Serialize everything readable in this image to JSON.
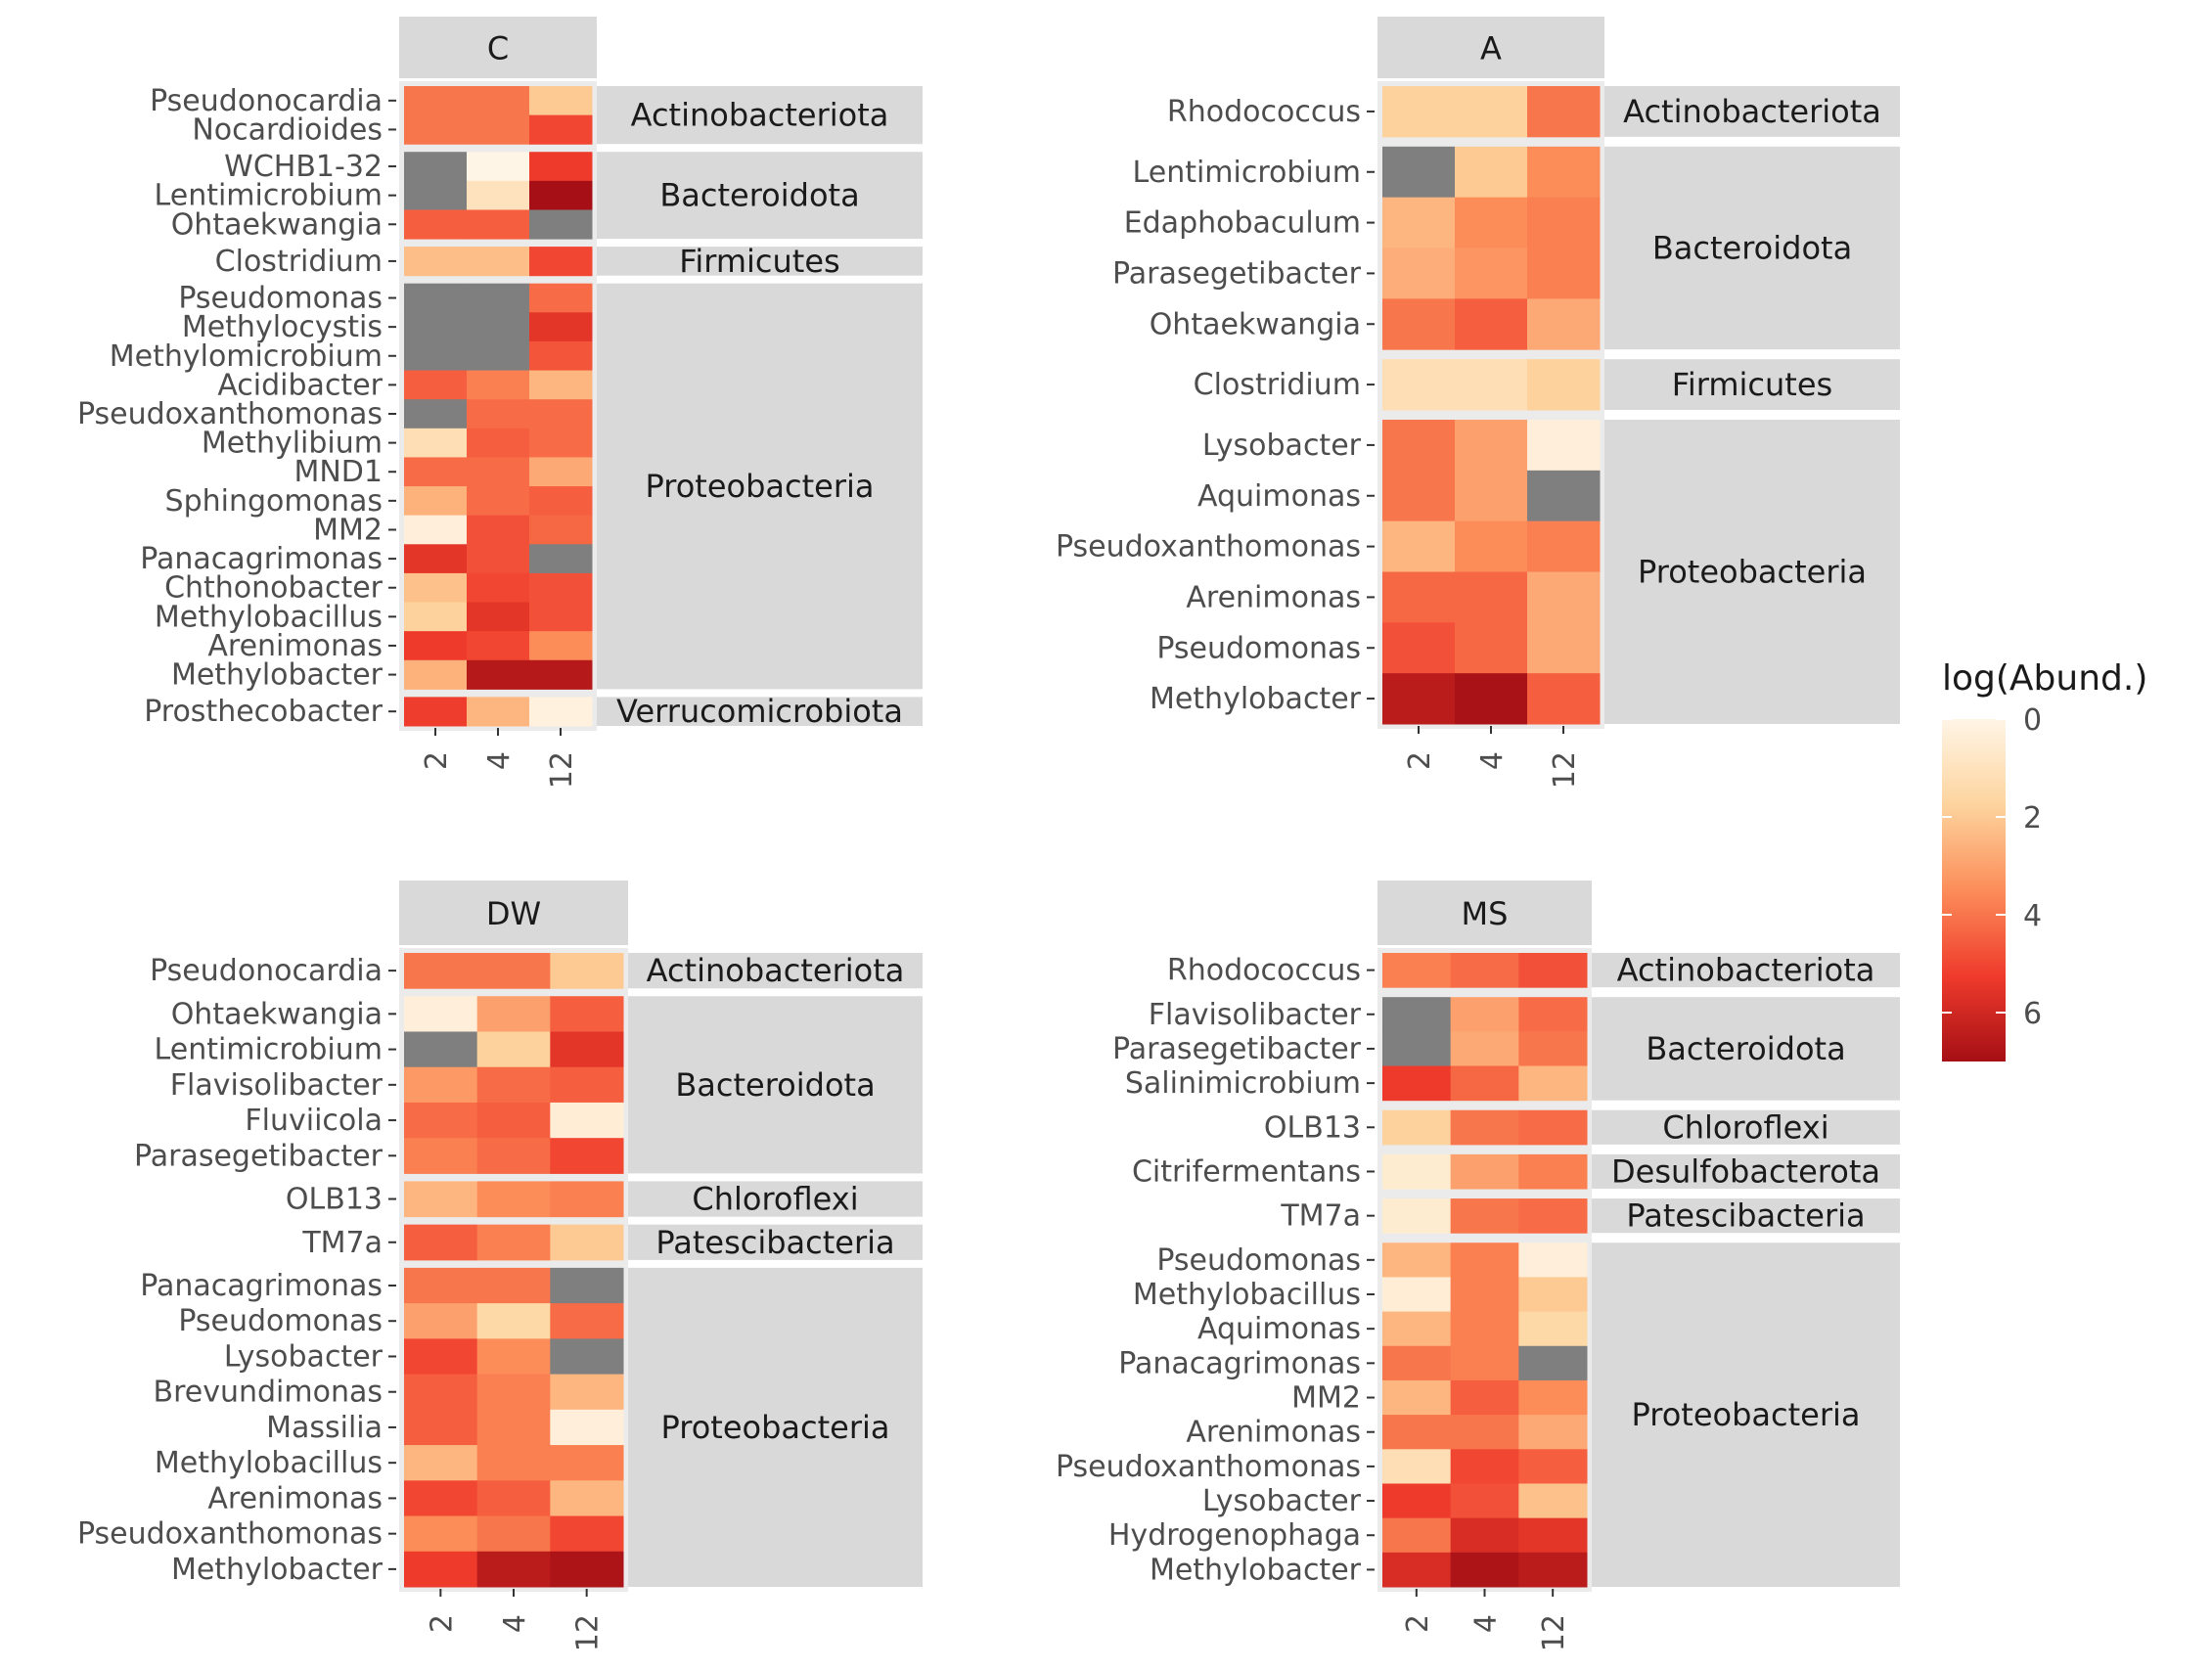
{
  "chart_data": {
    "type": "heatmap",
    "legend": {
      "title": "log(Abund.)",
      "ticks": [
        0,
        2,
        4,
        6
      ],
      "range": [
        0,
        7
      ],
      "low_color": "#fff5e6",
      "mid_colors": [
        "#fdd49e",
        "#fc8d59",
        "#ef3b2c"
      ],
      "high_color": "#a50f15",
      "na_color": "#7f7f7f",
      "placement": "right"
    },
    "x_categories": [
      "2",
      "4",
      "12"
    ],
    "panels": [
      {
        "title": "C",
        "groups": [
          {
            "phylum": "Actinobacteriota",
            "rows": [
              {
                "genus": "Pseudonocardia",
                "values": [
                  4,
                  4,
                  2
                ]
              },
              {
                "genus": "Nocardioides",
                "values": [
                  4,
                  4,
                  5
                ]
              }
            ]
          },
          {
            "phylum": "Bacteroidota",
            "rows": [
              {
                "genus": "WCHB1-32",
                "values": [
                  null,
                  0,
                  5.3
                ]
              },
              {
                "genus": "Lentimicrobium",
                "values": [
                  null,
                  1,
                  7
                ]
              },
              {
                "genus": "Ohtaekwangia",
                "values": [
                  4.5,
                  4.5,
                  null
                ]
              }
            ]
          },
          {
            "phylum": "Firmicutes",
            "rows": [
              {
                "genus": "Clostridium",
                "values": [
                  2.3,
                  2.3,
                  5
                ]
              }
            ]
          },
          {
            "phylum": "Proteobacteria",
            "rows": [
              {
                "genus": "Pseudomonas",
                "values": [
                  null,
                  null,
                  4.2
                ]
              },
              {
                "genus": "Methylocystis",
                "values": [
                  null,
                  null,
                  5.5
                ]
              },
              {
                "genus": "Methylomicrobium",
                "values": [
                  null,
                  null,
                  4.7
                ]
              },
              {
                "genus": "Acidibacter",
                "values": [
                  4.5,
                  3.8,
                  2.5
                ]
              },
              {
                "genus": "Pseudoxanthomonas",
                "values": [
                  null,
                  4.2,
                  4.2
                ]
              },
              {
                "genus": "Methylibium",
                "values": [
                  1.2,
                  4.5,
                  4.2
                ]
              },
              {
                "genus": "MND1",
                "values": [
                  4.2,
                  4.2,
                  2.8
                ]
              },
              {
                "genus": "Sphingomonas",
                "values": [
                  2.6,
                  4.2,
                  4.5
                ]
              },
              {
                "genus": "MM2",
                "values": [
                  0.3,
                  4.8,
                  4.3
                ]
              },
              {
                "genus": "Panacagrimonas",
                "values": [
                  5.5,
                  4.8,
                  null
                ]
              },
              {
                "genus": "Chthonobacter",
                "values": [
                  2.2,
                  5,
                  4.8
                ]
              },
              {
                "genus": "Methylobacillus",
                "values": [
                  1.8,
                  5.5,
                  4.8
                ]
              },
              {
                "genus": "Arenimonas",
                "values": [
                  5.3,
                  5,
                  3.5
                ]
              },
              {
                "genus": "Methylobacter",
                "values": [
                  2.6,
                  6.6,
                  6.6
                ]
              }
            ]
          },
          {
            "phylum": "Verrucomicrobiota",
            "rows": [
              {
                "genus": "Prosthecobacter",
                "values": [
                  5.2,
                  2.5,
                  0.2
                ]
              }
            ]
          }
        ]
      },
      {
        "title": "A",
        "groups": [
          {
            "phylum": "Actinobacteriota",
            "rows": [
              {
                "genus": "Rhodococcus",
                "values": [
                  1.8,
                  1.8,
                  4
                ]
              }
            ]
          },
          {
            "phylum": "Bacteroidota",
            "rows": [
              {
                "genus": "Lentimicrobium",
                "values": [
                  null,
                  2,
                  3.5
                ]
              },
              {
                "genus": "Edaphobaculum",
                "values": [
                  2.5,
                  3.5,
                  3.8
                ]
              },
              {
                "genus": "Parasegetibacter",
                "values": [
                  2.7,
                  3.3,
                  3.8
                ]
              },
              {
                "genus": "Ohtaekwangia",
                "values": [
                  4,
                  4.5,
                  2.8
                ]
              }
            ]
          },
          {
            "phylum": "Firmicutes",
            "rows": [
              {
                "genus": "Clostridium",
                "values": [
                  1.2,
                  1.2,
                  1.8
                ]
              }
            ]
          },
          {
            "phylum": "Proteobacteria",
            "rows": [
              {
                "genus": "Lysobacter",
                "values": [
                  4,
                  3,
                  0.3
                ]
              },
              {
                "genus": "Aquimonas",
                "values": [
                  4,
                  3,
                  null
                ]
              },
              {
                "genus": "Pseudoxanthomonas",
                "values": [
                  2.5,
                  3.5,
                  3.8
                ]
              },
              {
                "genus": "Arenimonas",
                "values": [
                  4.3,
                  4.3,
                  2.8
                ]
              },
              {
                "genus": "Pseudomonas",
                "values": [
                  4.8,
                  4.3,
                  2.8
                ]
              },
              {
                "genus": "Methylobacter",
                "values": [
                  6.5,
                  6.9,
                  4.5
                ]
              }
            ]
          }
        ]
      },
      {
        "title": "DW",
        "groups": [
          {
            "phylum": "Actinobacteriota",
            "rows": [
              {
                "genus": "Pseudonocardia",
                "values": [
                  4,
                  4,
                  2
                ]
              }
            ]
          },
          {
            "phylum": "Bacteroidota",
            "rows": [
              {
                "genus": "Ohtaekwangia",
                "values": [
                  0.3,
                  3,
                  4.5
                ]
              },
              {
                "genus": "Lentimicrobium",
                "values": [
                  null,
                  1.8,
                  5.5
                ]
              },
              {
                "genus": "Flavisolibacter",
                "values": [
                  3.2,
                  4.2,
                  4.5
                ]
              },
              {
                "genus": "Fluviicola",
                "values": [
                  4.2,
                  4.5,
                  0.4
                ]
              },
              {
                "genus": "Parasegetibacter",
                "values": [
                  3.8,
                  4.2,
                  5
                ]
              }
            ]
          },
          {
            "phylum": "Chloroflexi",
            "rows": [
              {
                "genus": "OLB13",
                "values": [
                  2.5,
                  3.5,
                  3.8
                ]
              }
            ]
          },
          {
            "phylum": "Patescibacteria",
            "rows": [
              {
                "genus": "TM7a",
                "values": [
                  4.5,
                  3.8,
                  2
                ]
              }
            ]
          },
          {
            "phylum": "Proteobacteria",
            "rows": [
              {
                "genus": "Panacagrimonas",
                "values": [
                  4,
                  4,
                  null
                ]
              },
              {
                "genus": "Pseudomonas",
                "values": [
                  3,
                  1.5,
                  4.2
                ]
              },
              {
                "genus": "Lysobacter",
                "values": [
                  5,
                  3.5,
                  null
                ]
              },
              {
                "genus": "Brevundimonas",
                "values": [
                  4.5,
                  3.8,
                  2.5
                ]
              },
              {
                "genus": "Massilia",
                "values": [
                  4.5,
                  3.8,
                  0.3
                ]
              },
              {
                "genus": "Methylobacillus",
                "values": [
                  2.5,
                  3.8,
                  3.8
                ]
              },
              {
                "genus": "Arenimonas",
                "values": [
                  5,
                  4.5,
                  2.5
                ]
              },
              {
                "genus": "Pseudoxanthomonas",
                "values": [
                  3.5,
                  4,
                  5
                ]
              },
              {
                "genus": "Methylobacter",
                "values": [
                  5.3,
                  6.5,
                  6.8
                ]
              }
            ]
          }
        ]
      },
      {
        "title": "MS",
        "groups": [
          {
            "phylum": "Actinobacteriota",
            "rows": [
              {
                "genus": "Rhodococcus",
                "values": [
                  3.8,
                  4.2,
                  4.8
                ]
              }
            ]
          },
          {
            "phylum": "Bacteroidota",
            "rows": [
              {
                "genus": "Flavisolibacter",
                "values": [
                  null,
                  3,
                  4.2
                ]
              },
              {
                "genus": "Parasegetibacter",
                "values": [
                  null,
                  2.8,
                  4
                ]
              },
              {
                "genus": "Salinimicrobium",
                "values": [
                  5.3,
                  4.3,
                  2.5
                ]
              }
            ]
          },
          {
            "phylum": "Chloroflexi",
            "rows": [
              {
                "genus": "OLB13",
                "values": [
                  1.8,
                  4,
                  4.2
                ]
              }
            ]
          },
          {
            "phylum": "Desulfobacterota",
            "rows": [
              {
                "genus": "Citrifermentans",
                "values": [
                  0.5,
                  3,
                  3.8
                ]
              }
            ]
          },
          {
            "phylum": "Patescibacteria",
            "rows": [
              {
                "genus": "TM7a",
                "values": [
                  0.5,
                  4,
                  4.2
                ]
              }
            ]
          },
          {
            "phylum": "Proteobacteria",
            "rows": [
              {
                "genus": "Pseudomonas",
                "values": [
                  2.5,
                  3.8,
                  0.3
                ]
              },
              {
                "genus": "Methylobacillus",
                "values": [
                  0.4,
                  3.8,
                  2
                ]
              },
              {
                "genus": "Aquimonas",
                "values": [
                  2.5,
                  3.8,
                  1.5
                ]
              },
              {
                "genus": "Panacagrimonas",
                "values": [
                  4,
                  3.8,
                  null
                ]
              },
              {
                "genus": "MM2",
                "values": [
                  2.5,
                  4.5,
                  3.5
                ]
              },
              {
                "genus": "Arenimonas",
                "values": [
                  4,
                  4,
                  2.8
                ]
              },
              {
                "genus": "Pseudoxanthomonas",
                "values": [
                  1.2,
                  5,
                  4.5
                ]
              },
              {
                "genus": "Lysobacter",
                "values": [
                  5.3,
                  4.8,
                  2.2
                ]
              },
              {
                "genus": "Hydrogenophaga",
                "values": [
                  4,
                  5.8,
                  5.5
                ]
              },
              {
                "genus": "Methylobacter",
                "values": [
                  5.8,
                  6.8,
                  6.5
                ]
              }
            ]
          }
        ]
      }
    ]
  }
}
